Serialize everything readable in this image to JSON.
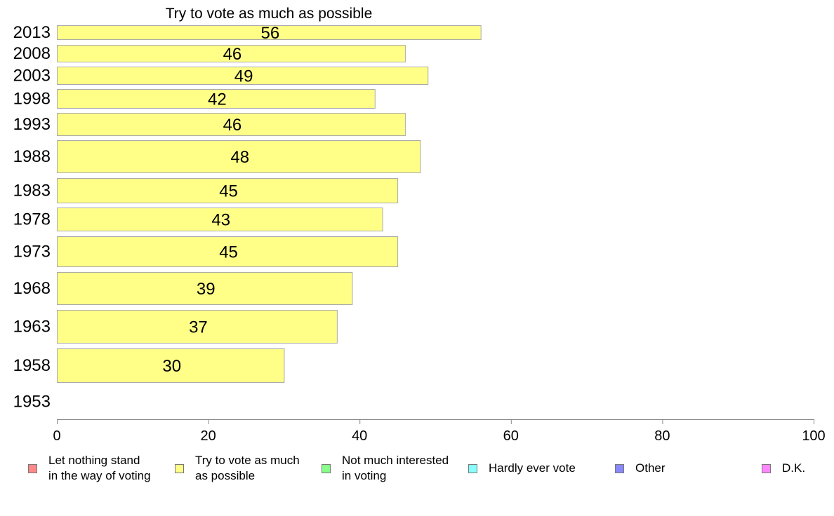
{
  "chart_data": {
    "type": "bar",
    "orientation": "horizontal",
    "title": "Try to vote as much as possible",
    "categories": [
      "2013",
      "2008",
      "2003",
      "1998",
      "1993",
      "1988",
      "1983",
      "1978",
      "1973",
      "1968",
      "1963",
      "1958",
      "1953"
    ],
    "values": [
      56,
      46,
      49,
      42,
      46,
      48,
      45,
      43,
      45,
      39,
      37,
      30,
      null
    ],
    "data_labels": [
      "56",
      "46",
      "49",
      "42",
      "46",
      "48",
      "45",
      "43",
      "45",
      "39",
      "37",
      "30",
      ""
    ],
    "xlim": [
      0,
      100
    ],
    "x_ticks": [
      "0",
      "20",
      "40",
      "60",
      "80",
      "100"
    ],
    "bar_color": "#ffff88",
    "bar_stroke": "#aaaaaa",
    "grid": false,
    "legend_position": "bottom",
    "legend": [
      {
        "label": "Let nothing stand\nin the way of voting",
        "color": "#ff8888"
      },
      {
        "label": "Try to vote as much\nas possible",
        "color": "#ffff88"
      },
      {
        "label": "Not much interested\nin voting",
        "color": "#88ff88"
      },
      {
        "label": "Hardly ever vote",
        "color": "#88ffff"
      },
      {
        "label": "Other",
        "color": "#8888ff"
      },
      {
        "label": "D.K.",
        "color": "#ff88ff"
      }
    ]
  }
}
